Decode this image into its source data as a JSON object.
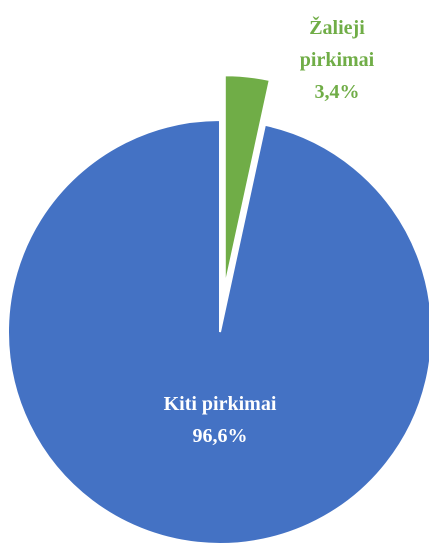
{
  "chart_data": {
    "type": "pie",
    "categories": [
      "Žalieji pirkimai",
      "Kiti pirkimai"
    ],
    "values": [
      3.4,
      96.6
    ],
    "value_labels": [
      "3,4%",
      "96,6%"
    ],
    "colors": [
      "#70ad47",
      "#4472c4"
    ]
  }
}
